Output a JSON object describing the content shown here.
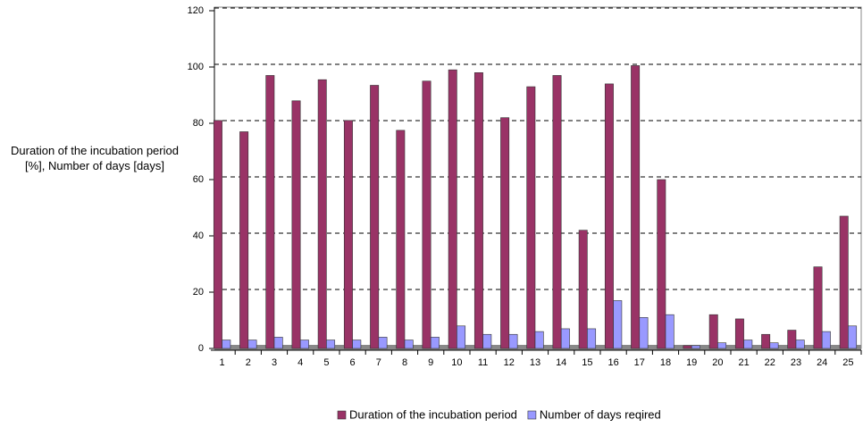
{
  "chart_data": {
    "type": "bar",
    "y_label": "Duration of the incubation period [%], Number of days [days]",
    "categories": [
      "1",
      "2",
      "3",
      "4",
      "5",
      "6",
      "7",
      "8",
      "9",
      "10",
      "11",
      "12",
      "13",
      "14",
      "15",
      "16",
      "17",
      "18",
      "19",
      "20",
      "21",
      "22",
      "23",
      "24",
      "25"
    ],
    "series": [
      {
        "name": "Duration of the incubation period",
        "color": "#993366",
        "values": [
          81,
          77,
          97,
          88,
          95.5,
          81,
          93.5,
          77.5,
          95,
          99,
          98,
          82,
          93,
          97,
          42,
          94,
          100.5,
          60,
          1,
          12,
          10.5,
          5,
          6.5,
          29,
          47
        ]
      },
      {
        "name": "Number of days reqired",
        "color": "#9999ff",
        "values": [
          3,
          3,
          4,
          3,
          3,
          3,
          4,
          3,
          4,
          8,
          5,
          5,
          6,
          7,
          7,
          17,
          11,
          12,
          1,
          2,
          3,
          2,
          3,
          6,
          8
        ]
      }
    ],
    "ylim": [
      0,
      120
    ],
    "yticks": [
      0,
      20,
      40,
      60,
      80,
      100,
      120
    ],
    "grid": true
  }
}
